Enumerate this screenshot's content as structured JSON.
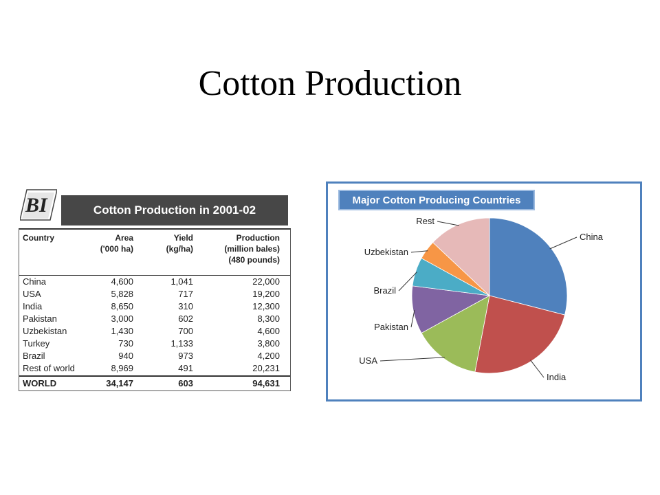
{
  "slide": {
    "title": "Cotton Production"
  },
  "table": {
    "logo_text": "BI",
    "title": "Cotton Production in 2001-02",
    "headers": {
      "country": "Country",
      "area_1": "Area",
      "area_2": "('000 ha)",
      "yield_1": "Yield",
      "yield_2": "(kg/ha)",
      "prod_1": "Production",
      "prod_2": "(million bales)",
      "prod_3": "(480 pounds)"
    },
    "rows": [
      {
        "country": "China",
        "area": "4,600",
        "yield": "1,041",
        "production": "22,000"
      },
      {
        "country": "USA",
        "area": "5,828",
        "yield": "717",
        "production": "19,200"
      },
      {
        "country": "India",
        "area": "8,650",
        "yield": "310",
        "production": "12,300"
      },
      {
        "country": "Pakistan",
        "area": "3,000",
        "yield": "602",
        "production": "8,300"
      },
      {
        "country": "Uzbekistan",
        "area": "1,430",
        "yield": "700",
        "production": "4,600"
      },
      {
        "country": "Turkey",
        "area": "730",
        "yield": "1,133",
        "production": "3,800"
      },
      {
        "country": "Brazil",
        "area": "940",
        "yield": "973",
        "production": "4,200"
      },
      {
        "country": "Rest of world",
        "area": "8,969",
        "yield": "491",
        "production": "20,231"
      }
    ],
    "world": {
      "country": "WORLD",
      "area": "34,147",
      "yield": "603",
      "production": "94,631"
    }
  },
  "chart_data": {
    "type": "pie",
    "title": "Major Cotton Producing Countries",
    "start_angle_deg": 0,
    "direction": "clockwise",
    "slices": [
      {
        "label": "China",
        "value": 29,
        "color": "#4f81bd"
      },
      {
        "label": "India",
        "value": 24,
        "color": "#c0504d"
      },
      {
        "label": "USA",
        "value": 14,
        "color": "#9bbb59"
      },
      {
        "label": "Pakistan",
        "value": 10,
        "color": "#8064a2"
      },
      {
        "label": "Brazil",
        "value": 6,
        "color": "#4bacc6"
      },
      {
        "label": "Uzbekistan",
        "value": 4,
        "color": "#f79646"
      },
      {
        "label": "Rest",
        "value": 13,
        "color": "#e6b9b8"
      }
    ]
  }
}
